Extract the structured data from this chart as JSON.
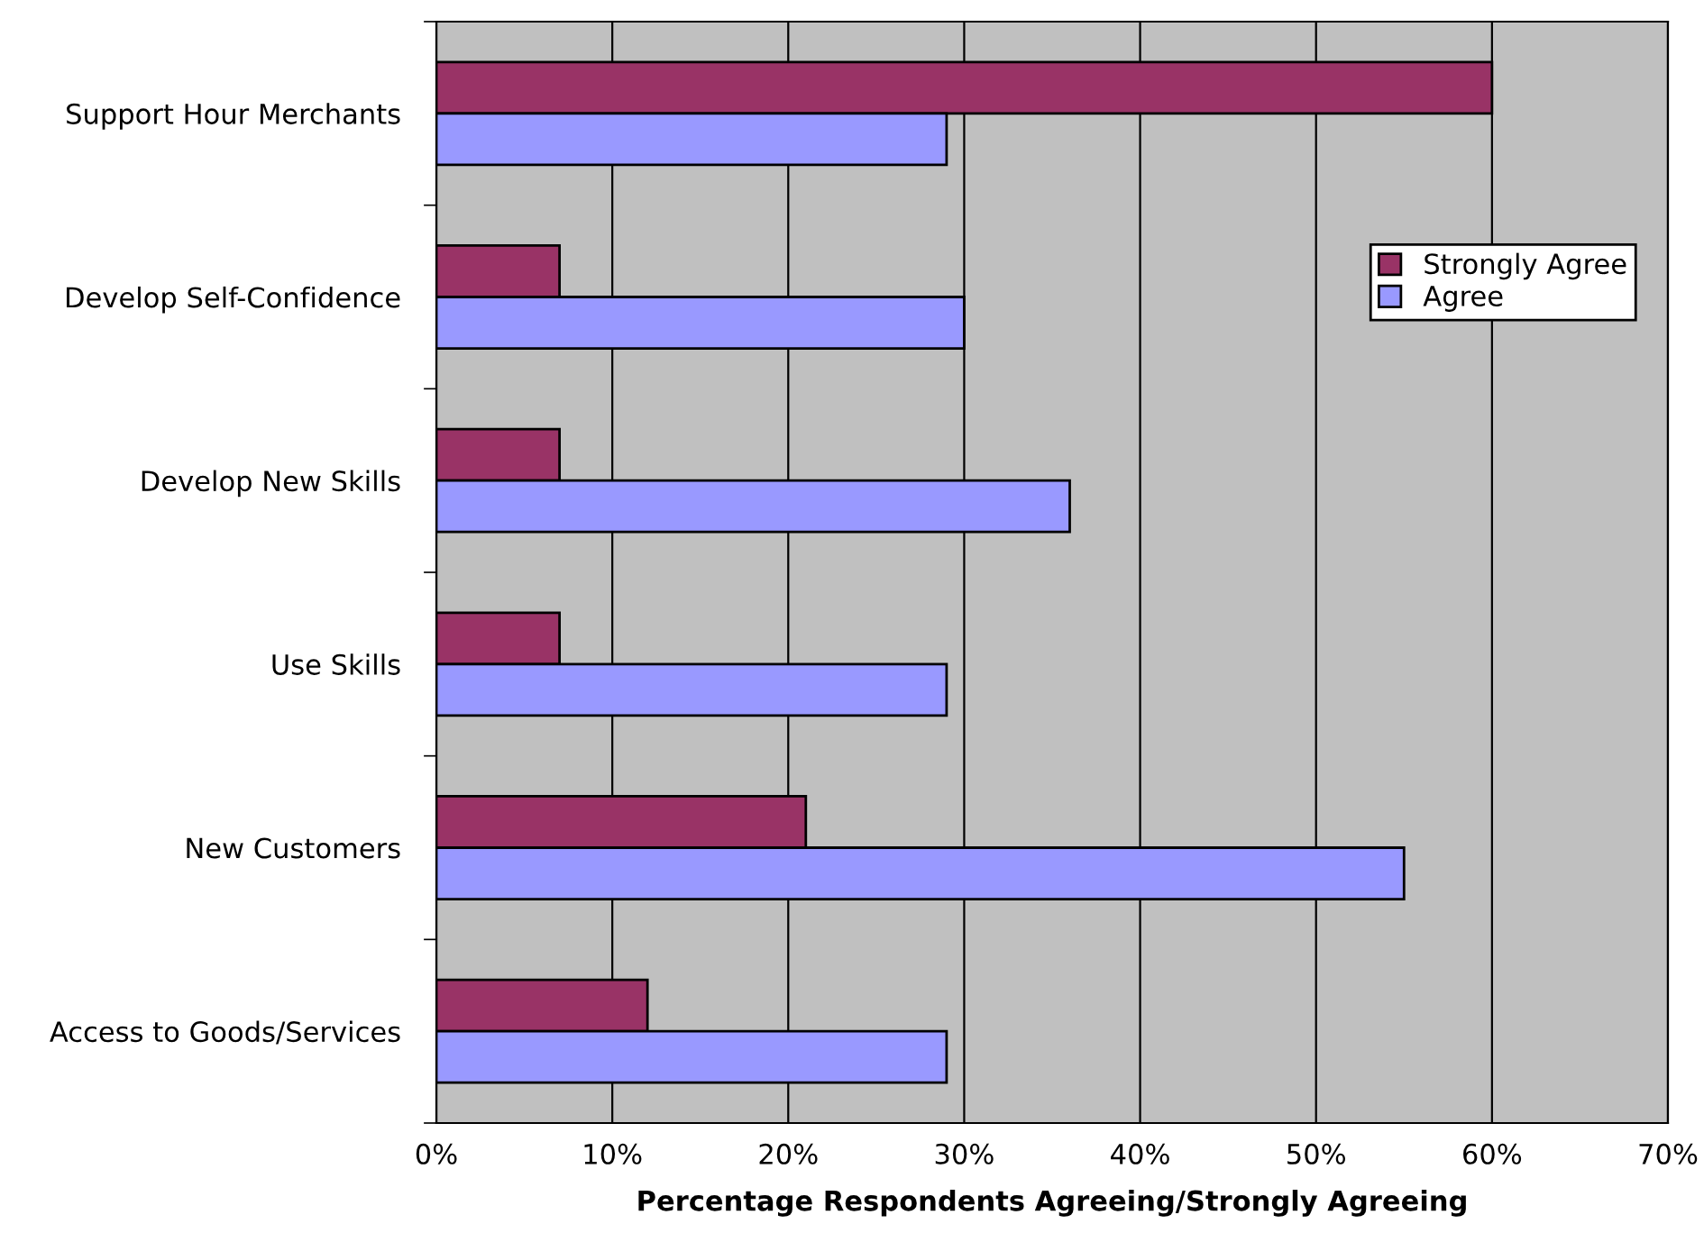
{
  "chart_data": {
    "type": "bar",
    "orientation": "horizontal",
    "xlabel": "Percentage Respondents Agreeing/Strongly Agreeing",
    "categories": [
      "Support Hour Merchants",
      "Develop Self-Confidence",
      "Develop New Skills",
      "Use Skills",
      "New Customers",
      "Access to Goods/Services"
    ],
    "series": [
      {
        "name": "Strongly Agree",
        "color": "#993366",
        "values": [
          60,
          7,
          7,
          7,
          21,
          12
        ]
      },
      {
        "name": "Agree",
        "color": "#9999ff",
        "values": [
          29,
          30,
          36,
          29,
          55,
          29
        ]
      }
    ],
    "xlim": [
      0,
      70
    ],
    "xticks": [
      {
        "value": 0,
        "label": "0%"
      },
      {
        "value": 10,
        "label": "10%"
      },
      {
        "value": 20,
        "label": "20%"
      },
      {
        "value": 30,
        "label": "30%"
      },
      {
        "value": 40,
        "label": "40%"
      },
      {
        "value": 50,
        "label": "50%"
      },
      {
        "value": 60,
        "label": "60%"
      },
      {
        "value": 70,
        "label": "70%"
      }
    ],
    "grid": "x",
    "legend": "top right"
  }
}
